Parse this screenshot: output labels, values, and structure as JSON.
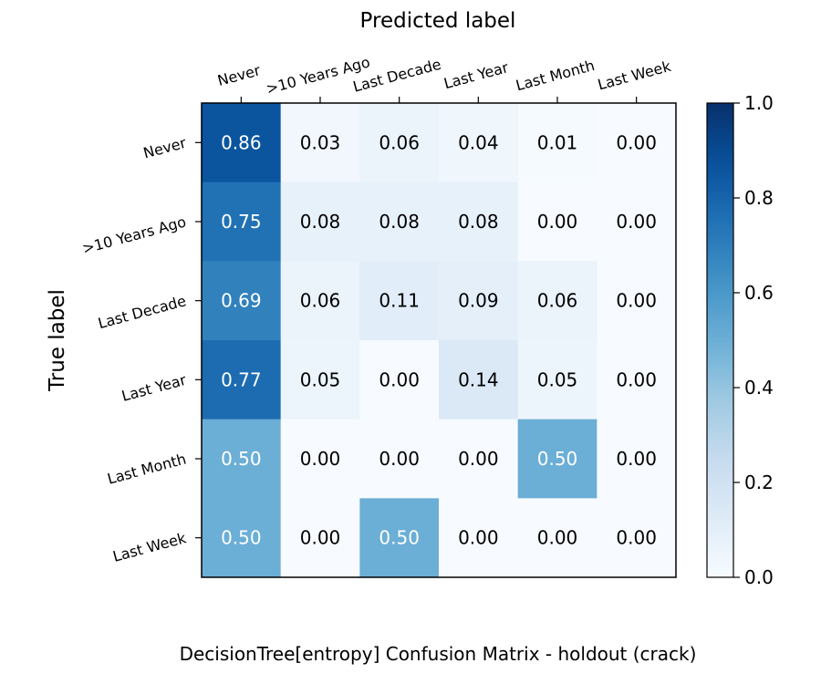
{
  "chart_data": {
    "type": "heatmap",
    "xlabel": "Predicted label",
    "ylabel": "True label",
    "caption": "DecisionTree[entropy] Confusion Matrix - holdout (crack)",
    "x_categories": [
      "Never",
      ">10 Years Ago",
      "Last Decade",
      "Last Year",
      "Last Month",
      "Last Week"
    ],
    "y_categories": [
      "Never",
      ">10 Years Ago",
      "Last Decade",
      "Last Year",
      "Last Month",
      "Last Week"
    ],
    "values": [
      [
        0.86,
        0.03,
        0.06,
        0.04,
        0.01,
        0.0
      ],
      [
        0.75,
        0.08,
        0.08,
        0.08,
        0.0,
        0.0
      ],
      [
        0.69,
        0.06,
        0.11,
        0.09,
        0.06,
        0.0
      ],
      [
        0.77,
        0.05,
        0.0,
        0.14,
        0.05,
        0.0
      ],
      [
        0.5,
        0.0,
        0.0,
        0.0,
        0.5,
        0.0
      ],
      [
        0.5,
        0.0,
        0.5,
        0.0,
        0.0,
        0.0
      ]
    ],
    "value_labels": [
      [
        "0.86",
        "0.03",
        "0.06",
        "0.04",
        "0.01",
        "0.00"
      ],
      [
        "0.75",
        "0.08",
        "0.08",
        "0.08",
        "0.00",
        "0.00"
      ],
      [
        "0.69",
        "0.06",
        "0.11",
        "0.09",
        "0.06",
        "0.00"
      ],
      [
        "0.77",
        "0.05",
        "0.00",
        "0.14",
        "0.05",
        "0.00"
      ],
      [
        "0.50",
        "0.00",
        "0.00",
        "0.00",
        "0.50",
        "0.00"
      ],
      [
        "0.50",
        "0.00",
        "0.50",
        "0.00",
        "0.00",
        "0.00"
      ]
    ],
    "colorbar": {
      "range": [
        0.0,
        1.0
      ],
      "ticks": [
        0.0,
        0.2,
        0.4,
        0.6,
        0.8,
        1.0
      ],
      "tick_labels": [
        "0.0",
        "0.2",
        "0.4",
        "0.6",
        "0.8",
        "1.0"
      ],
      "colormap": "Blues"
    },
    "x_tick_position": "top",
    "colors": {
      "low": "#f7fbff",
      "high": "#08306b",
      "text_dark": "#000000",
      "text_light": "#ffffff"
    }
  }
}
